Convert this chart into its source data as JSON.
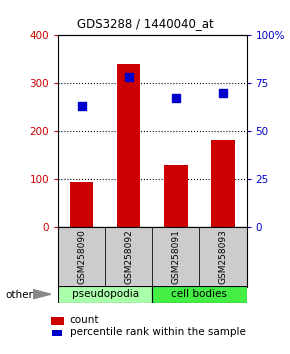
{
  "title": "GDS3288 / 1440040_at",
  "samples": [
    "GSM258090",
    "GSM258092",
    "GSM258091",
    "GSM258093"
  ],
  "counts": [
    93,
    340,
    128,
    182
  ],
  "percentiles": [
    63,
    78,
    67,
    70
  ],
  "ylim_left": [
    0,
    400
  ],
  "ylim_right": [
    0,
    100
  ],
  "yticks_left": [
    0,
    100,
    200,
    300,
    400
  ],
  "yticks_right": [
    0,
    25,
    50,
    75,
    100
  ],
  "ytick_labels_left": [
    "0",
    "100",
    "200",
    "300",
    "400"
  ],
  "ytick_labels_right": [
    "0",
    "25",
    "50",
    "75",
    "100%"
  ],
  "bar_color": "#cc0000",
  "dot_color": "#0000cc",
  "bg_color": "#ffffff",
  "groups": [
    {
      "label": "pseudopodia",
      "color": "#aaffaa",
      "span": [
        0,
        1
      ]
    },
    {
      "label": "cell bodies",
      "color": "#44ee44",
      "span": [
        2,
        3
      ]
    }
  ],
  "other_label": "other",
  "legend_count_label": "count",
  "legend_percentile_label": "percentile rank within the sample",
  "tick_label_color_left": "#cc0000",
  "tick_label_color_right": "#0000cc",
  "bar_width": 0.5,
  "dot_size": 40,
  "grid_dotted_levels": [
    100,
    200,
    300
  ]
}
